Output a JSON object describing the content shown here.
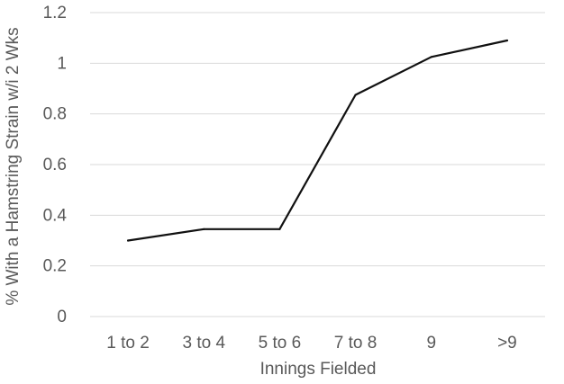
{
  "chart_data": {
    "type": "line",
    "title": "",
    "xlabel": "Innings Fielded",
    "ylabel": "% With a Hamstring Strain w/i 2 Wks",
    "categories": [
      "1 to 2",
      "3 to 4",
      "5 to 6",
      "7 to 8",
      "9",
      ">9"
    ],
    "series": [
      {
        "values": [
          0.3,
          0.345,
          0.345,
          0.875,
          1.025,
          1.09
        ]
      }
    ],
    "ylim": [
      0,
      1.2
    ],
    "yticks": [
      "0",
      "0.2",
      "0.4",
      "0.6",
      "0.8",
      "1",
      "1.2"
    ],
    "grid": true,
    "legend": "none",
    "line_color": "#111111",
    "grid_color": "#d9d9d9"
  }
}
